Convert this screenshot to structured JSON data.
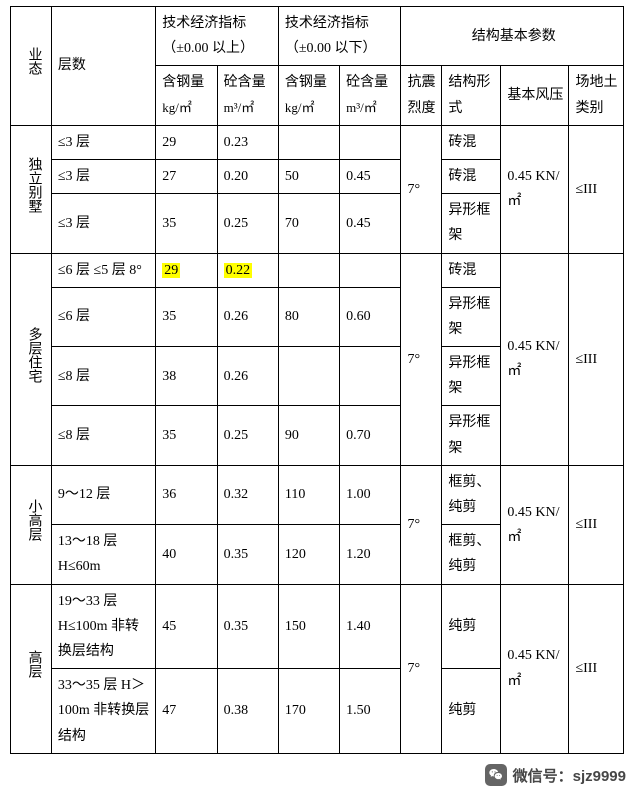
{
  "header": {
    "business_type": "业态",
    "floors": "层数",
    "tech_econ_above": "技术经济指标（±0.00 以上）",
    "tech_econ_below": "技术经济指标（±0.00 以下）",
    "struct_params": "结构基本参数",
    "steel_content": "含钢量",
    "steel_unit": "kg/㎡",
    "concrete_content": "砼含量",
    "concrete_unit": "m³/㎡",
    "seismic": "抗震烈度",
    "struct_form": "结构形式",
    "wind_pressure": "基本风压",
    "site_soil": "场地土类别"
  },
  "groups": [
    {
      "name": "独立别墅",
      "seismic": "7°",
      "wind": "0.45 KN/㎡",
      "soil": "≤III",
      "rows": [
        {
          "floors": "≤3 层",
          "sa": "29",
          "ca": "0.23",
          "sb": "",
          "cb": "",
          "form": "砖混",
          "hl": false
        },
        {
          "floors": "≤3 层",
          "sa": "27",
          "ca": "0.20",
          "sb": "50",
          "cb": "0.45",
          "form": "砖混",
          "hl": false
        },
        {
          "floors": "≤3 层",
          "sa": "35",
          "ca": "0.25",
          "sb": "70",
          "cb": "0.45",
          "form": "异形框架",
          "hl": false
        }
      ]
    },
    {
      "name": "多层住宅",
      "seismic": "7°",
      "wind": "0.45 KN/㎡",
      "soil": "≤III",
      "rows": [
        {
          "floors": "≤6 层 ≤5 层 8°",
          "sa": "29",
          "ca": "0.22",
          "sb": "",
          "cb": "",
          "form": "砖混",
          "hl": true
        },
        {
          "floors": "≤6 层",
          "sa": "35",
          "ca": "0.26",
          "sb": "80",
          "cb": "0.60",
          "form": "异形框架",
          "hl": false
        },
        {
          "floors": "≤8 层",
          "sa": "38",
          "ca": "0.26",
          "sb": "",
          "cb": "",
          "form": "异形框架",
          "hl": false
        },
        {
          "floors": "≤8 层",
          "sa": "35",
          "ca": "0.25",
          "sb": "90",
          "cb": "0.70",
          "form": "异形框架",
          "hl": false
        }
      ]
    },
    {
      "name": "小高层",
      "seismic": "7°",
      "wind": "0.45 KN/㎡",
      "soil": "≤III",
      "rows": [
        {
          "floors": "9～12 层",
          "sa": "36",
          "ca": "0.32",
          "sb": "110",
          "cb": "1.00",
          "form": "框剪、纯剪",
          "hl": false
        },
        {
          "floors": "13～18 层 H≤60m",
          "sa": "40",
          "ca": "0.35",
          "sb": "120",
          "cb": "1.20",
          "form": "框剪、纯剪",
          "hl": false
        }
      ]
    },
    {
      "name": "高层",
      "seismic": "7°",
      "wind": "0.45 KN/㎡",
      "soil": "≤III",
      "rows": [
        {
          "floors": "19～33 层 H≤100m 非转换层结构",
          "sa": "45",
          "ca": "0.35",
          "sb": "150",
          "cb": "1.40",
          "form": "纯剪",
          "hl": false
        },
        {
          "floors": "33～35 层 H＞100m 非转换层结构",
          "sa": "47",
          "ca": "0.38",
          "sb": "170",
          "cb": "1.50",
          "form": "纯剪",
          "hl": false
        }
      ]
    }
  ],
  "watermark": {
    "label": "微信号：",
    "id": "sjz9999"
  }
}
